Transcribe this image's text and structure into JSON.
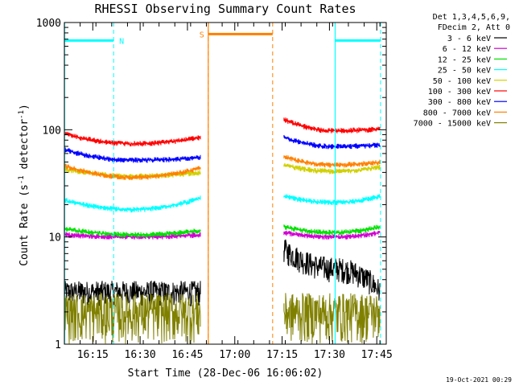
{
  "chart_data": {
    "type": "line",
    "title": "RHESSI Observing Summary Count Rates",
    "xlabel": "Start Time (28-Dec-06 16:06:02)",
    "ylabel": "Count Rate (s",
    "ylabel_sup1": "-1",
    "ylabel_mid": " detector",
    "ylabel_sup2": "-1",
    "ylabel_end": ")",
    "y_scale": "log",
    "ylim": [
      1,
      1000
    ],
    "xlim_minutes": [
      16.1,
      17.8
    ],
    "x_ticks": [
      {
        "value": 16.25,
        "label": "16:15"
      },
      {
        "value": 16.5,
        "label": "16:30"
      },
      {
        "value": 16.75,
        "label": "16:45"
      },
      {
        "value": 17.0,
        "label": "17:00"
      },
      {
        "value": 17.25,
        "label": "17:15"
      },
      {
        "value": 17.5,
        "label": "17:30"
      },
      {
        "value": 17.75,
        "label": "17:45"
      }
    ],
    "y_ticks": [
      {
        "value": 1,
        "label": "1"
      },
      {
        "value": 10,
        "label": "10"
      },
      {
        "value": 100,
        "label": "100"
      },
      {
        "value": 1000,
        "label": "1000"
      }
    ],
    "legend_header": [
      "Det 1,3,4,5,6,9,",
      "FDecim 2, Att 0"
    ],
    "legend_placement": "right",
    "series": [
      {
        "name": "3 - 6 keV",
        "color": "#000000",
        "seg1": [
          3.0,
          3.0,
          3.0
        ],
        "seg2": [
          7.5,
          5.0,
          3.0
        ]
      },
      {
        "name": "6 - 12 keV",
        "color": "#d000d0",
        "seg1": [
          10.5,
          10.0,
          10.5
        ],
        "seg2": [
          11.0,
          10.0,
          11.0
        ]
      },
      {
        "name": "12 - 25 keV",
        "color": "#00e000",
        "seg1": [
          12.0,
          10.5,
          11.5
        ],
        "seg2": [
          12.5,
          11.0,
          12.5
        ]
      },
      {
        "name": "25 - 50 keV",
        "color": "#00ffff",
        "seg1": [
          22.0,
          18.0,
          23.0
        ],
        "seg2": [
          24.0,
          21.0,
          24.0
        ]
      },
      {
        "name": "50 - 100 keV",
        "color": "#d0d000",
        "seg1": [
          43.0,
          37.0,
          40.0
        ],
        "seg2": [
          47.0,
          41.0,
          45.0
        ]
      },
      {
        "name": "100 - 300 keV",
        "color": "#ff0000",
        "seg1": [
          92.0,
          74.0,
          85.0
        ],
        "seg2": [
          125.0,
          98.0,
          102.0
        ]
      },
      {
        "name": "300 - 800 keV",
        "color": "#0000ff",
        "seg1": [
          65.0,
          52.0,
          55.0
        ],
        "seg2": [
          85.0,
          70.0,
          72.0
        ]
      },
      {
        "name": "800 - 7000 keV",
        "color": "#ff8000",
        "seg1": [
          46.0,
          36.0,
          44.0
        ],
        "seg2": [
          56.0,
          47.0,
          50.0
        ]
      },
      {
        "name": "7000 - 15000 keV",
        "color": "#808000",
        "seg1": [
          2.4,
          2.4,
          2.4
        ],
        "seg2": [
          2.4,
          2.4,
          2.4
        ]
      }
    ],
    "flag_bars": [
      {
        "label": "N",
        "color": "#00ffff",
        "start": 16.1,
        "end": 16.36,
        "level": 680
      },
      {
        "label": "",
        "color": "#00ffff",
        "start": 17.53,
        "end": 17.77,
        "level": 680
      },
      {
        "label": "S",
        "color": "#ff8000",
        "start": 16.86,
        "end": 17.2,
        "level": 780
      }
    ],
    "segments": [
      {
        "start": 16.1,
        "end": 16.82
      },
      {
        "start": 17.26,
        "end": 17.77
      }
    ],
    "footer_date": "19-Oct-2021 00:29"
  }
}
